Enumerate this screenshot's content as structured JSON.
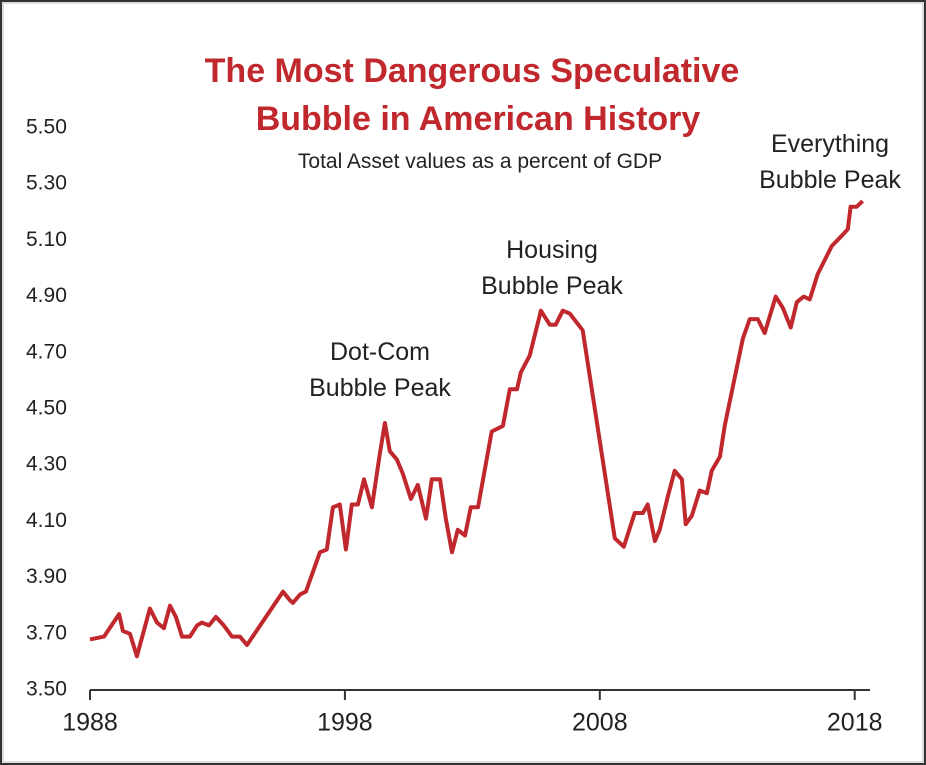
{
  "chart_data": {
    "type": "line",
    "title": [
      "The Most Dangerous Speculative",
      "Bubble in American History"
    ],
    "subtitle": "Total Asset values as a percent of GDP",
    "annotations": [
      {
        "text": [
          "Dot-Com",
          "Bubble Peak"
        ]
      },
      {
        "text": [
          "Housing",
          "Bubble Peak"
        ]
      },
      {
        "text": [
          "Everything",
          "Bubble Peak"
        ]
      }
    ],
    "series": [
      {
        "color": "#c0282d",
        "x": [
          1988.0,
          1988.55,
          1989.14,
          1989.29,
          1989.57,
          1989.84,
          1990.35,
          1990.63,
          1990.9,
          1991.14,
          1991.37,
          1991.61,
          1991.92,
          1992.2,
          1992.39,
          1992.67,
          1992.94,
          1993.25,
          1993.57,
          1993.88,
          1994.16,
          1995.57,
          1995.84,
          1995.96,
          1996.24,
          1996.47,
          1997.02,
          1997.29,
          1997.53,
          1997.8,
          1998.04,
          1998.27,
          1998.51,
          1998.75,
          1999.06,
          1999.37,
          1999.57,
          1999.76,
          2000.04,
          2000.27,
          2000.59,
          2000.86,
          2001.18,
          2001.41,
          2001.73,
          2001.96,
          2002.2,
          2002.43,
          2002.71,
          2002.94,
          2003.22,
          2003.76,
          2004.2,
          2004.47,
          2004.75,
          2004.9,
          2005.25,
          2005.69,
          2006.04,
          2006.27,
          2006.55,
          2006.82,
          2007.33,
          2008.59,
          2008.94,
          2009.37,
          2009.69,
          2009.88,
          2010.16,
          2010.35,
          2010.67,
          2010.94,
          2011.22,
          2011.37,
          2011.61,
          2011.92,
          2012.2,
          2012.39,
          2012.71,
          2012.9,
          2013.61,
          2013.88,
          2014.2,
          2014.47,
          2014.9,
          2015.18,
          2015.49,
          2015.73,
          2016.0,
          2016.24,
          2016.55,
          2017.1,
          2017.53,
          2017.73,
          2017.84,
          2018.08,
          2018.31
        ],
        "values": [
          3.68,
          3.69,
          3.77,
          3.71,
          3.7,
          3.62,
          3.79,
          3.74,
          3.72,
          3.8,
          3.76,
          3.69,
          3.69,
          3.73,
          3.74,
          3.73,
          3.76,
          3.73,
          3.69,
          3.69,
          3.66,
          3.85,
          3.82,
          3.81,
          3.84,
          3.85,
          3.99,
          4.0,
          4.15,
          4.16,
          4.0,
          4.16,
          4.16,
          4.25,
          4.15,
          4.34,
          4.45,
          4.35,
          4.32,
          4.27,
          4.18,
          4.23,
          4.11,
          4.25,
          4.25,
          4.11,
          3.99,
          4.07,
          4.05,
          4.15,
          4.15,
          4.42,
          4.44,
          4.57,
          4.57,
          4.63,
          4.69,
          4.85,
          4.8,
          4.8,
          4.85,
          4.84,
          4.78,
          4.04,
          4.01,
          4.13,
          4.13,
          4.16,
          4.03,
          4.07,
          4.19,
          4.28,
          4.25,
          4.09,
          4.12,
          4.21,
          4.2,
          4.28,
          4.33,
          4.44,
          4.75,
          4.82,
          4.82,
          4.77,
          4.9,
          4.86,
          4.79,
          4.88,
          4.9,
          4.89,
          4.98,
          5.08,
          5.12,
          5.14,
          5.22,
          5.22,
          5.24
        ]
      }
    ],
    "xlim": [
      1988,
      2018.6
    ],
    "xticks": [
      1988,
      1998,
      2008,
      2018
    ],
    "ylim": [
      3.5,
      5.5
    ],
    "yticks": [
      {
        "value": 3.5,
        "label": "3.50"
      },
      {
        "value": 3.7,
        "label": "3.70"
      },
      {
        "value": 3.9,
        "label": "3.90"
      },
      {
        "value": 4.1,
        "label": "4.10"
      },
      {
        "value": 4.3,
        "label": "4.30"
      },
      {
        "value": 4.5,
        "label": "4.50"
      },
      {
        "value": 4.7,
        "label": "4.70"
      },
      {
        "value": 4.9,
        "label": "4.90"
      },
      {
        "value": 5.1,
        "label": "5.10"
      },
      {
        "value": 5.3,
        "label": "5.30"
      },
      {
        "value": 5.5,
        "label": "5.50"
      }
    ],
    "grid": false
  }
}
